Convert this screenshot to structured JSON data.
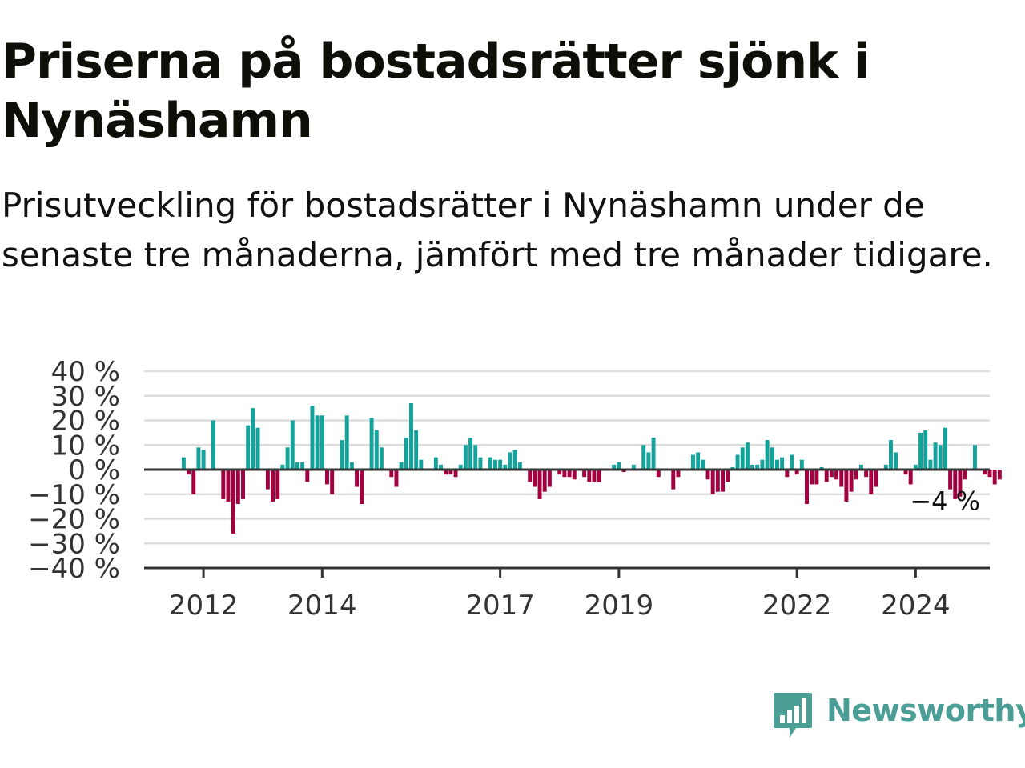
{
  "title": "Priserna på bostadsrätter sjönk i Nynäshamn",
  "subtitle": "Prisutveckling för bostadsrätter i Nynäshamn under de senaste tre månaderna, jämfört med tre månader tidigare.",
  "brand": {
    "name": "Newsworthy",
    "color": "#4a9e96",
    "icon": "bar-chart-speech-bubble-icon"
  },
  "colors": {
    "positive": "#13a39b",
    "negative": "#a3003f",
    "grid": "#dddddd",
    "axis": "#333333"
  },
  "chart_data": {
    "type": "bar",
    "title": "Priserna på bostadsrätter sjönk i Nynäshamn",
    "subtitle": "Prisutveckling för bostadsrätter i Nynäshamn under de senaste tre månaderna, jämfört med tre månader tidigare.",
    "xlabel": "",
    "ylabel": "",
    "unit": "%",
    "ylim": [
      -40,
      40
    ],
    "yticks": [
      40,
      30,
      20,
      10,
      0,
      -10,
      -20,
      -30,
      -40
    ],
    "ytick_labels": [
      "40 %",
      "30 %",
      "20 %",
      "10 %",
      "0 %",
      "−10 %",
      "−20 %",
      "−30 %",
      "−40 %"
    ],
    "xticks": [
      "2012",
      "2014",
      "2017",
      "2019",
      "2022",
      "2024"
    ],
    "grid": true,
    "legend": "none",
    "x_start": "2011-01",
    "x_end": "2025-04",
    "first_bar": "2011-09",
    "annotation": {
      "label": "−4 %",
      "point": "2025-01",
      "value": -4
    },
    "values": [
      5,
      -2,
      -10,
      9,
      8,
      0,
      20,
      0,
      -12,
      -13,
      -26,
      -14,
      -12,
      18,
      25,
      17,
      0,
      -8,
      -13,
      -12,
      2,
      9,
      20,
      3,
      3,
      -5,
      26,
      22,
      22,
      -6,
      -10,
      0,
      12,
      22,
      3,
      -7,
      -14,
      0,
      21,
      16,
      9,
      0,
      -3,
      -7,
      3,
      13,
      27,
      16,
      4,
      0,
      0,
      5,
      2,
      -2,
      -2,
      -3,
      2,
      10,
      13,
      10,
      5,
      0,
      5,
      4,
      4,
      2,
      7,
      8,
      3,
      0,
      -5,
      -7,
      -12,
      -9,
      -7,
      0,
      -2,
      -3,
      -3,
      -4,
      0,
      -3,
      -5,
      -5,
      -5,
      0,
      0,
      2,
      3,
      -1,
      0,
      2,
      0,
      10,
      7,
      13,
      -3,
      0,
      0,
      -8,
      -3,
      0,
      0,
      6,
      7,
      4,
      -4,
      -10,
      -9,
      -9,
      -5,
      1,
      6,
      9,
      11,
      2,
      2,
      4,
      12,
      9,
      4,
      5,
      -3,
      6,
      -2,
      4,
      -14,
      -6,
      -6,
      1,
      -5,
      -3,
      -4,
      -7,
      -13,
      -9,
      -4,
      2,
      -3,
      -10,
      -7,
      0,
      2,
      12,
      7,
      0,
      -2,
      -6,
      2,
      15,
      16,
      4,
      11,
      10,
      17,
      -8,
      -12,
      -11,
      -4,
      0,
      10,
      0,
      -2,
      -3,
      -6,
      -4
    ]
  }
}
